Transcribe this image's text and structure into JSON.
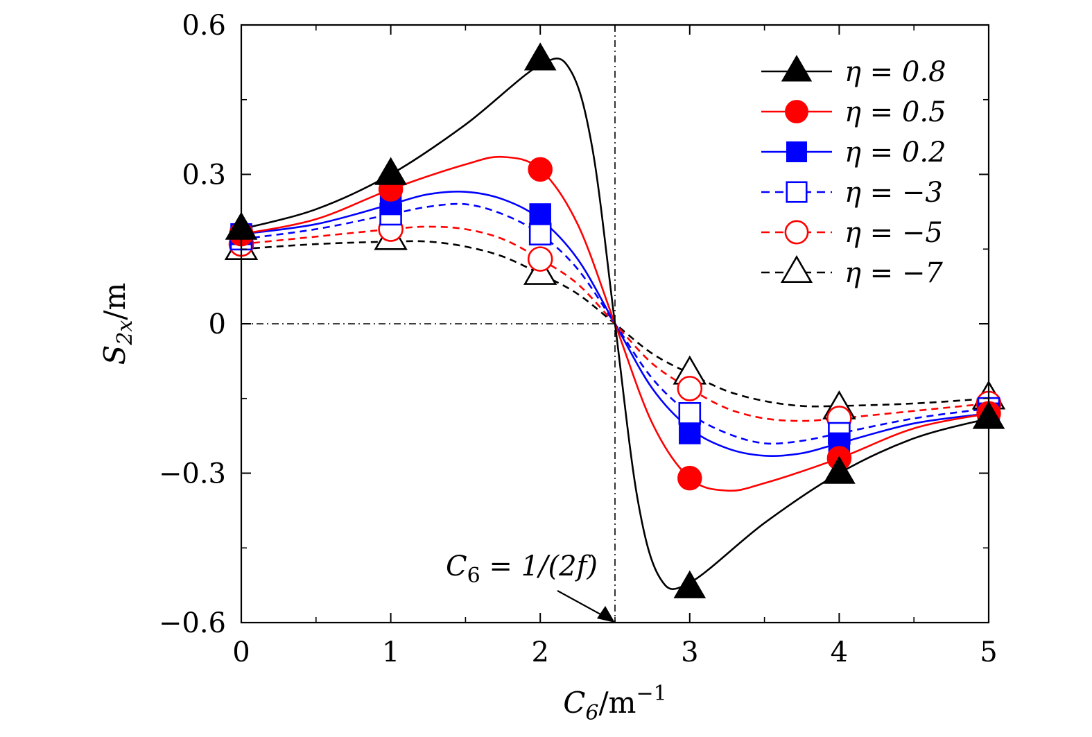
{
  "chart_data": {
    "type": "line",
    "xlabel": "C6/m−1",
    "ylabel": "S2x/m",
    "xlim": [
      0,
      5
    ],
    "ylim": [
      -0.6,
      0.6
    ],
    "x_ticks": [
      "0",
      "1",
      "2",
      "3",
      "4",
      "5"
    ],
    "y_ticks": [
      "−0.6",
      "−0.3",
      "0",
      "0.3",
      "0.6"
    ],
    "x_tick_values": [
      0,
      1,
      2,
      3,
      4,
      5
    ],
    "y_tick_values": [
      -0.6,
      -0.3,
      0,
      0.3,
      0.6
    ],
    "grid": false,
    "legend_position": "top-right",
    "annotation": {
      "text": "C6 = 1/(2f)",
      "x": 2.5,
      "y": -0.6
    },
    "reference_lines": {
      "vertical_x": 2.5,
      "horizontal_y": 0
    },
    "series": [
      {
        "name": "η = 0.8",
        "color": "#000000",
        "line_style": "solid",
        "marker": "triangle-filled",
        "x": [
          0,
          1,
          2,
          3,
          4,
          5
        ],
        "values": [
          0.19,
          0.3,
          0.53,
          -0.53,
          -0.3,
          -0.19
        ],
        "curve_x": [
          0,
          0.5,
          1,
          1.5,
          2,
          2.2,
          2.35,
          2.5,
          2.65,
          2.8,
          3,
          3.5,
          4,
          4.5,
          5
        ],
        "curve_y": [
          0.19,
          0.23,
          0.3,
          0.4,
          0.52,
          0.51,
          0.35,
          0,
          -0.35,
          -0.51,
          -0.52,
          -0.4,
          -0.3,
          -0.23,
          -0.19
        ]
      },
      {
        "name": "η = 0.5",
        "color": "#ff0000",
        "line_style": "solid",
        "marker": "circle-filled",
        "x": [
          0,
          1,
          2,
          3,
          4,
          5
        ],
        "values": [
          0.18,
          0.27,
          0.31,
          -0.31,
          -0.27,
          -0.18
        ],
        "curve_x": [
          0,
          0.5,
          1,
          1.5,
          1.75,
          2,
          2.25,
          2.5,
          2.75,
          3,
          3.25,
          3.5,
          4,
          4.5,
          5
        ],
        "curve_y": [
          0.18,
          0.21,
          0.27,
          0.32,
          0.335,
          0.31,
          0.2,
          0,
          -0.2,
          -0.31,
          -0.335,
          -0.32,
          -0.27,
          -0.21,
          -0.18
        ]
      },
      {
        "name": "η = 0.2",
        "color": "#0000ff",
        "line_style": "solid",
        "marker": "square-filled",
        "x": [
          0,
          1,
          2,
          3,
          4,
          5
        ],
        "values": [
          0.18,
          0.24,
          0.22,
          -0.22,
          -0.24,
          -0.18
        ],
        "curve_x": [
          0,
          0.5,
          1,
          1.25,
          1.5,
          1.75,
          2,
          2.25,
          2.5,
          2.75,
          3,
          3.25,
          3.5,
          3.75,
          4,
          4.5,
          5
        ],
        "curve_y": [
          0.18,
          0.2,
          0.24,
          0.26,
          0.265,
          0.25,
          0.21,
          0.13,
          0,
          -0.13,
          -0.21,
          -0.25,
          -0.265,
          -0.26,
          -0.24,
          -0.2,
          -0.18
        ]
      },
      {
        "name": "η = −3",
        "color": "#0000ff",
        "line_style": "dashed",
        "marker": "square-open",
        "x": [
          0,
          1,
          2,
          3,
          4,
          5
        ],
        "values": [
          0.17,
          0.22,
          0.18,
          -0.18,
          -0.22,
          -0.17
        ],
        "curve_x": [
          0,
          0.5,
          1,
          1.25,
          1.5,
          1.75,
          2,
          2.25,
          2.5,
          2.75,
          3,
          3.25,
          3.5,
          3.75,
          4,
          4.5,
          5
        ],
        "curve_y": [
          0.17,
          0.19,
          0.22,
          0.235,
          0.24,
          0.22,
          0.18,
          0.11,
          0,
          -0.11,
          -0.18,
          -0.22,
          -0.24,
          -0.235,
          -0.22,
          -0.19,
          -0.17
        ]
      },
      {
        "name": "η = −5",
        "color": "#ff0000",
        "line_style": "dashed",
        "marker": "circle-open",
        "x": [
          0,
          1,
          2,
          3,
          4,
          5
        ],
        "values": [
          0.16,
          0.19,
          0.13,
          -0.13,
          -0.19,
          -0.16
        ],
        "curve_x": [
          0,
          0.5,
          1,
          1.25,
          1.5,
          1.75,
          2,
          2.25,
          2.5,
          2.75,
          3,
          3.25,
          3.5,
          3.75,
          4,
          4.5,
          5
        ],
        "curve_y": [
          0.16,
          0.175,
          0.19,
          0.195,
          0.19,
          0.17,
          0.13,
          0.08,
          0,
          -0.08,
          -0.13,
          -0.17,
          -0.19,
          -0.195,
          -0.19,
          -0.175,
          -0.16
        ]
      },
      {
        "name": "η = −7",
        "color": "#000000",
        "line_style": "dashed",
        "marker": "triangle-open",
        "x": [
          0,
          1,
          2,
          3,
          4,
          5
        ],
        "values": [
          0.15,
          0.17,
          0.1,
          -0.1,
          -0.17,
          -0.15
        ],
        "curve_x": [
          0,
          0.5,
          1,
          1.25,
          1.5,
          1.75,
          2,
          2.25,
          2.5,
          2.75,
          3,
          3.25,
          3.5,
          3.75,
          4,
          4.5,
          5
        ],
        "curve_y": [
          0.15,
          0.16,
          0.165,
          0.165,
          0.155,
          0.135,
          0.1,
          0.06,
          0,
          -0.06,
          -0.1,
          -0.135,
          -0.155,
          -0.165,
          -0.165,
          -0.16,
          -0.15
        ]
      }
    ]
  }
}
